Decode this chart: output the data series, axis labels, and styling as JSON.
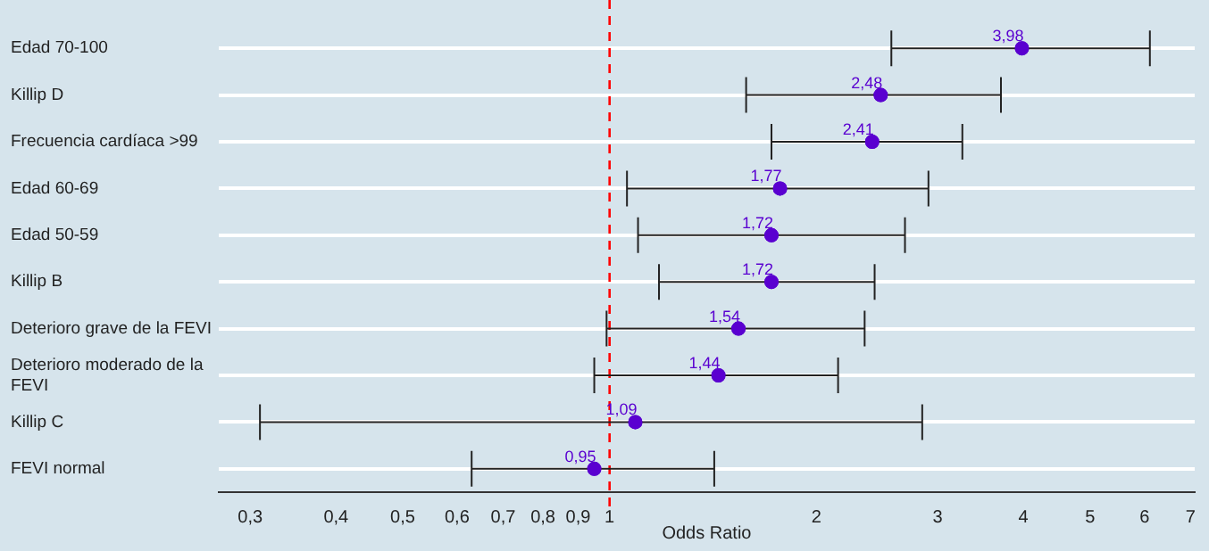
{
  "chart_data": {
    "type": "scatter",
    "orientation": "horizontal",
    "xlabel": "Odds Ratio",
    "categories": [
      "Edad 70-100",
      "Killip D",
      "Frecuencia cardíaca >99",
      "Edad 60-69",
      "Edad 50-59",
      "Killip B",
      "Deterioro grave de la FEVI",
      "Deterioro moderado de la FEVI",
      "Killip C",
      "FEVI normal"
    ],
    "series": [
      {
        "color": "#5a00d0",
        "values": [
          3.98,
          2.48,
          2.41,
          1.77,
          1.72,
          1.72,
          1.54,
          1.44,
          1.09,
          0.95
        ],
        "value_labels": [
          "3,98",
          "2,48",
          "2,41",
          "1,77",
          "1,72",
          "1,72",
          "1,54",
          "1,44",
          "1,09",
          "0,95"
        ],
        "errors": [
          [
            2.57,
            6.11
          ],
          [
            1.58,
            3.71
          ],
          [
            1.72,
            3.26
          ],
          [
            1.06,
            2.91
          ],
          [
            1.1,
            2.69
          ],
          [
            1.18,
            2.43
          ],
          [
            0.99,
            2.35
          ],
          [
            0.95,
            2.15
          ],
          [
            0.31,
            2.85
          ],
          [
            0.63,
            1.42
          ]
        ]
      }
    ],
    "log": "x",
    "xlim": [
      0.27,
      7.1
    ],
    "xticks": [
      {
        "value": 0.3,
        "label": "0,3"
      },
      {
        "value": 0.4,
        "label": "0,4"
      },
      {
        "value": 0.5,
        "label": "0,5"
      },
      {
        "value": 0.6,
        "label": "0,6"
      },
      {
        "value": 0.7,
        "label": "0,7"
      },
      {
        "value": 0.8,
        "label": "0,8"
      },
      {
        "value": 0.9,
        "label": "0,9"
      },
      1,
      2,
      3,
      4,
      5,
      6,
      7
    ],
    "grid": "y",
    "marker": "circle",
    "legend": false,
    "ref_lines": [
      {
        "axis": "x",
        "value": 1,
        "color": "#ff0000",
        "line_style": "dashed"
      }
    ]
  }
}
